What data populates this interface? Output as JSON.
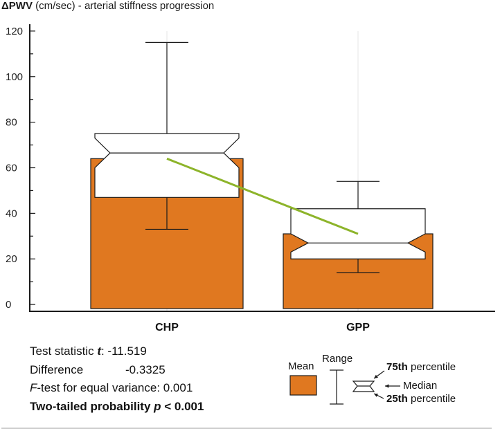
{
  "chart_data": {
    "type": "box",
    "ylabel_symbol": "ΔPWV",
    "ylabel_rest": " (cm/sec) - arterial stiffness progression",
    "categories": [
      "CHP",
      "GPP"
    ],
    "ylim": [
      -3,
      123
    ],
    "yticks": [
      "0",
      "20",
      "40",
      "60",
      "80",
      "100",
      "120"
    ],
    "ytick_values": [
      0,
      20,
      40,
      60,
      80,
      100,
      120
    ],
    "groups": [
      {
        "name": "CHP",
        "mean": 64,
        "min": 33,
        "max": 115,
        "q1": 47,
        "median": 66.5,
        "q3": 75,
        "notch_low": 60,
        "notch_high": 73
      },
      {
        "name": "GPP",
        "mean": 31,
        "min": 14,
        "max": 54,
        "q1": 20,
        "median": 27,
        "q3": 42,
        "notch_low": 23,
        "notch_high": 31
      }
    ],
    "mean_trend_line": {
      "from": 64,
      "to": 31
    },
    "colors": {
      "mean_bar": "#e07820",
      "trend_line": "#8db42a",
      "box_fill": "#ffffff",
      "stroke": "#1a1a1a"
    }
  },
  "stats": {
    "t_label": "Test statistic ",
    "t_symbol": "t",
    "t_value": ": -11.519",
    "diff_label": "Difference",
    "diff_value": "-0.3325",
    "f_symbol": "F",
    "f_label": "-test for equal variance: 0.001",
    "p_label": "Two-tailed probability ",
    "p_symbol": "p",
    "p_value": " < 0.001"
  },
  "legend": {
    "mean_label": "Mean",
    "range_label": "Range",
    "p75_bold": "75th",
    "p75_rest": " percentile",
    "median_label": "Median",
    "p25_bold": "25th",
    "p25_rest": " percentile"
  }
}
